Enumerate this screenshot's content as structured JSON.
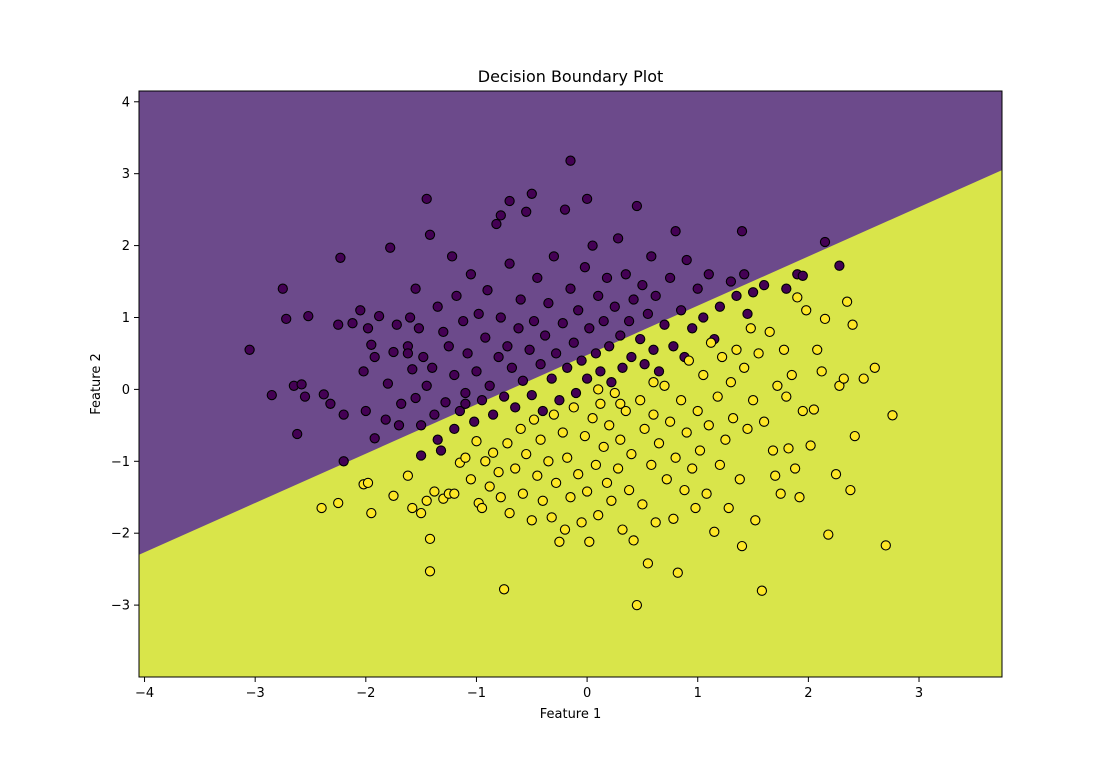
{
  "chart_data": {
    "type": "scatter",
    "title": "Decision Boundary Plot",
    "xlabel": "Feature 1",
    "ylabel": "Feature 2",
    "xlim": [
      -4.05,
      3.75
    ],
    "ylim": [
      -4.0,
      4.15
    ],
    "x_ticks": [
      -4,
      -3,
      -2,
      -1,
      0,
      1,
      2,
      3
    ],
    "y_ticks": [
      -3,
      -2,
      -1,
      0,
      1,
      2,
      3,
      4
    ],
    "grid": false,
    "decision_boundary": {
      "line": [
        [
          -4.05,
          -2.3
        ],
        [
          3.75,
          3.05
        ]
      ],
      "region_above_color": "#6c4a8b",
      "region_below_color": "#d9e54a"
    },
    "series": [
      {
        "class": 0,
        "color": "#440154",
        "points": [
          [
            -3.05,
            0.55
          ],
          [
            -2.85,
            -0.08
          ],
          [
            -2.75,
            1.4
          ],
          [
            -2.72,
            0.98
          ],
          [
            -2.65,
            0.05
          ],
          [
            -2.62,
            -0.62
          ],
          [
            -2.58,
            0.07
          ],
          [
            -2.55,
            -0.1
          ],
          [
            -2.52,
            1.02
          ],
          [
            -2.38,
            -0.07
          ],
          [
            -2.32,
            -0.2
          ],
          [
            -2.25,
            0.9
          ],
          [
            -2.23,
            1.83
          ],
          [
            -2.2,
            -0.35
          ],
          [
            -2.2,
            -1.0
          ],
          [
            -2.12,
            0.92
          ],
          [
            -2.05,
            1.1
          ],
          [
            -2.02,
            0.25
          ],
          [
            -2.0,
            -0.3
          ],
          [
            -1.98,
            0.85
          ],
          [
            -1.95,
            0.62
          ],
          [
            -1.92,
            0.45
          ],
          [
            -1.92,
            -0.68
          ],
          [
            -1.88,
            1.02
          ],
          [
            -1.8,
            0.08
          ],
          [
            -1.82,
            -0.42
          ],
          [
            -1.78,
            1.97
          ],
          [
            -1.75,
            0.52
          ],
          [
            -1.72,
            0.9
          ],
          [
            -1.7,
            -0.5
          ],
          [
            -1.68,
            -0.2
          ],
          [
            -1.62,
            0.6
          ],
          [
            -1.6,
            1.0
          ],
          [
            -1.58,
            0.28
          ],
          [
            -1.55,
            -0.12
          ],
          [
            -1.55,
            1.4
          ],
          [
            -1.52,
            0.85
          ],
          [
            -1.5,
            -0.5
          ],
          [
            -1.48,
            0.45
          ],
          [
            -1.45,
            0.05
          ],
          [
            -1.42,
            2.15
          ],
          [
            -1.4,
            0.3
          ],
          [
            -1.38,
            -0.35
          ],
          [
            -1.35,
            1.15
          ],
          [
            -1.32,
            -0.85
          ],
          [
            -1.3,
            0.8
          ],
          [
            -1.28,
            -0.18
          ],
          [
            -1.25,
            0.6
          ],
          [
            -1.22,
            1.85
          ],
          [
            -1.2,
            -0.55
          ],
          [
            -1.2,
            0.2
          ],
          [
            -1.18,
            1.3
          ],
          [
            -1.15,
            -0.3
          ],
          [
            -1.12,
            0.95
          ],
          [
            -1.1,
            -0.05
          ],
          [
            -1.08,
            0.5
          ],
          [
            -1.05,
            1.6
          ],
          [
            -1.02,
            -0.45
          ],
          [
            -1.0,
            0.25
          ],
          [
            -0.98,
            1.05
          ],
          [
            -0.95,
            -0.15
          ],
          [
            -0.92,
            0.72
          ],
          [
            -0.9,
            1.38
          ],
          [
            -0.88,
            0.05
          ],
          [
            -0.85,
            -0.35
          ],
          [
            -0.82,
            2.3
          ],
          [
            -0.8,
            0.45
          ],
          [
            -0.78,
            1.0
          ],
          [
            -0.75,
            -0.1
          ],
          [
            -0.72,
            0.6
          ],
          [
            -0.7,
            1.75
          ],
          [
            -0.68,
            0.3
          ],
          [
            -0.65,
            -0.25
          ],
          [
            -0.62,
            0.85
          ],
          [
            -0.6,
            1.25
          ],
          [
            -0.58,
            0.12
          ],
          [
            -0.55,
            2.47
          ],
          [
            -0.52,
            0.55
          ],
          [
            -0.5,
            -0.08
          ],
          [
            -0.48,
            0.95
          ],
          [
            -0.45,
            1.55
          ],
          [
            -0.42,
            0.35
          ],
          [
            -0.4,
            -0.3
          ],
          [
            -0.38,
            0.75
          ],
          [
            -0.35,
            1.2
          ],
          [
            -0.32,
            0.15
          ],
          [
            -0.3,
            1.85
          ],
          [
            -0.28,
            0.5
          ],
          [
            -0.25,
            -0.15
          ],
          [
            -0.22,
            0.92
          ],
          [
            -0.2,
            2.5
          ],
          [
            -0.18,
            0.3
          ],
          [
            -0.15,
            1.4
          ],
          [
            -0.12,
            0.65
          ],
          [
            -0.1,
            -0.05
          ],
          [
            -0.08,
            1.1
          ],
          [
            -0.05,
            0.4
          ],
          [
            -0.02,
            1.7
          ],
          [
            0.0,
            0.15
          ],
          [
            0.02,
            0.85
          ],
          [
            0.05,
            2.0
          ],
          [
            0.08,
            0.5
          ],
          [
            0.1,
            1.3
          ],
          [
            0.12,
            0.25
          ],
          [
            0.15,
            0.95
          ],
          [
            0.18,
            1.55
          ],
          [
            0.2,
            0.6
          ],
          [
            0.22,
            0.1
          ],
          [
            0.25,
            1.15
          ],
          [
            0.28,
            2.1
          ],
          [
            0.3,
            0.75
          ],
          [
            0.32,
            0.3
          ],
          [
            0.35,
            1.6
          ],
          [
            0.38,
            0.95
          ],
          [
            0.4,
            0.45
          ],
          [
            0.42,
            1.25
          ],
          [
            0.45,
            2.55
          ],
          [
            0.48,
            0.7
          ],
          [
            0.5,
            1.45
          ],
          [
            0.52,
            0.35
          ],
          [
            0.55,
            1.05
          ],
          [
            0.58,
            1.85
          ],
          [
            0.6,
            0.55
          ],
          [
            0.62,
            1.3
          ],
          [
            0.65,
            0.25
          ],
          [
            0.7,
            0.9
          ],
          [
            0.75,
            1.55
          ],
          [
            0.78,
            0.6
          ],
          [
            0.8,
            2.2
          ],
          [
            0.85,
            1.1
          ],
          [
            0.88,
            0.45
          ],
          [
            0.9,
            1.8
          ],
          [
            0.95,
            0.85
          ],
          [
            1.0,
            1.4
          ],
          [
            1.05,
            1.0
          ],
          [
            1.1,
            1.6
          ],
          [
            1.15,
            0.7
          ],
          [
            1.2,
            1.15
          ],
          [
            1.3,
            1.5
          ],
          [
            1.35,
            1.3
          ],
          [
            1.4,
            2.2
          ],
          [
            1.42,
            1.6
          ],
          [
            1.45,
            1.05
          ],
          [
            1.5,
            1.35
          ],
          [
            1.6,
            1.45
          ],
          [
            1.8,
            1.4
          ],
          [
            1.9,
            1.6
          ],
          [
            1.95,
            1.58
          ],
          [
            2.15,
            2.05
          ],
          [
            2.28,
            1.72
          ],
          [
            -1.45,
            2.65
          ],
          [
            -0.7,
            2.62
          ],
          [
            0.0,
            2.65
          ],
          [
            -0.5,
            2.72
          ],
          [
            -0.15,
            3.18
          ],
          [
            -0.78,
            2.42
          ],
          [
            -1.62,
            0.5
          ],
          [
            -1.5,
            -0.92
          ],
          [
            -1.35,
            -0.7
          ],
          [
            -1.1,
            -0.2
          ]
        ]
      },
      {
        "class": 1,
        "color": "#fde725",
        "points": [
          [
            -2.4,
            -1.65
          ],
          [
            -2.25,
            -1.58
          ],
          [
            -2.02,
            -1.32
          ],
          [
            -1.98,
            -1.3
          ],
          [
            -1.95,
            -1.72
          ],
          [
            -1.75,
            -1.48
          ],
          [
            -1.62,
            -1.2
          ],
          [
            -1.58,
            -1.65
          ],
          [
            -1.5,
            -1.72
          ],
          [
            -1.45,
            -1.55
          ],
          [
            -1.42,
            -2.08
          ],
          [
            -1.42,
            -2.53
          ],
          [
            -1.38,
            -1.42
          ],
          [
            -1.3,
            -1.52
          ],
          [
            -1.25,
            -1.45
          ],
          [
            -1.2,
            -1.45
          ],
          [
            -1.15,
            -1.02
          ],
          [
            -1.1,
            -0.95
          ],
          [
            -1.05,
            -1.25
          ],
          [
            -1.0,
            -0.72
          ],
          [
            -0.98,
            -1.58
          ],
          [
            -0.95,
            -1.65
          ],
          [
            -0.92,
            -1.0
          ],
          [
            -0.88,
            -1.35
          ],
          [
            -0.85,
            -0.88
          ],
          [
            -0.8,
            -1.15
          ],
          [
            -0.78,
            -1.5
          ],
          [
            -0.75,
            -2.78
          ],
          [
            -0.72,
            -0.75
          ],
          [
            -0.7,
            -1.72
          ],
          [
            -0.65,
            -1.1
          ],
          [
            -0.6,
            -0.55
          ],
          [
            -0.58,
            -1.45
          ],
          [
            -0.55,
            -0.9
          ],
          [
            -0.5,
            -1.82
          ],
          [
            -0.48,
            -0.42
          ],
          [
            -0.45,
            -1.2
          ],
          [
            -0.42,
            -0.7
          ],
          [
            -0.4,
            -1.55
          ],
          [
            -0.35,
            -1.0
          ],
          [
            -0.32,
            -1.78
          ],
          [
            -0.3,
            -0.35
          ],
          [
            -0.28,
            -1.3
          ],
          [
            -0.25,
            -2.12
          ],
          [
            -0.22,
            -0.6
          ],
          [
            -0.2,
            -1.95
          ],
          [
            -0.18,
            -0.95
          ],
          [
            -0.15,
            -1.5
          ],
          [
            -0.12,
            -0.25
          ],
          [
            -0.08,
            -1.18
          ],
          [
            -0.05,
            -1.85
          ],
          [
            -0.02,
            -0.65
          ],
          [
            0.0,
            -1.42
          ],
          [
            0.02,
            -2.12
          ],
          [
            0.05,
            -0.4
          ],
          [
            0.08,
            -1.05
          ],
          [
            0.1,
            -1.75
          ],
          [
            0.12,
            -0.2
          ],
          [
            0.15,
            -0.8
          ],
          [
            0.18,
            -1.3
          ],
          [
            0.2,
            -0.5
          ],
          [
            0.22,
            -1.55
          ],
          [
            0.25,
            -0.05
          ],
          [
            0.28,
            -1.1
          ],
          [
            0.3,
            -0.7
          ],
          [
            0.32,
            -1.95
          ],
          [
            0.35,
            -0.3
          ],
          [
            0.38,
            -1.4
          ],
          [
            0.4,
            -0.9
          ],
          [
            0.42,
            -2.1
          ],
          [
            0.45,
            -3.0
          ],
          [
            0.48,
            -0.15
          ],
          [
            0.5,
            -1.6
          ],
          [
            0.52,
            -0.55
          ],
          [
            0.55,
            -2.42
          ],
          [
            0.58,
            -1.05
          ],
          [
            0.6,
            -0.35
          ],
          [
            0.62,
            -1.85
          ],
          [
            0.65,
            -0.75
          ],
          [
            0.7,
            0.05
          ],
          [
            0.72,
            -1.25
          ],
          [
            0.75,
            -0.45
          ],
          [
            0.78,
            -1.8
          ],
          [
            0.8,
            -0.95
          ],
          [
            0.82,
            -2.55
          ],
          [
            0.85,
            -0.15
          ],
          [
            0.88,
            -1.4
          ],
          [
            0.9,
            -0.6
          ],
          [
            0.92,
            0.4
          ],
          [
            0.95,
            -1.1
          ],
          [
            0.98,
            -1.65
          ],
          [
            1.0,
            -0.3
          ],
          [
            1.02,
            -0.85
          ],
          [
            1.05,
            0.2
          ],
          [
            1.08,
            -1.45
          ],
          [
            1.1,
            -0.5
          ],
          [
            1.12,
            0.65
          ],
          [
            1.15,
            -1.98
          ],
          [
            1.18,
            -0.1
          ],
          [
            1.2,
            -1.05
          ],
          [
            1.22,
            0.45
          ],
          [
            1.25,
            -0.7
          ],
          [
            1.28,
            -1.65
          ],
          [
            1.3,
            0.1
          ],
          [
            1.32,
            -0.4
          ],
          [
            1.35,
            0.55
          ],
          [
            1.38,
            -1.25
          ],
          [
            1.4,
            -2.18
          ],
          [
            1.42,
            0.3
          ],
          [
            1.45,
            -0.55
          ],
          [
            1.48,
            0.85
          ],
          [
            1.5,
            -0.15
          ],
          [
            1.52,
            -1.82
          ],
          [
            1.55,
            0.5
          ],
          [
            1.58,
            -2.8
          ],
          [
            1.6,
            -0.45
          ],
          [
            1.65,
            0.8
          ],
          [
            1.68,
            -0.85
          ],
          [
            1.7,
            -1.2
          ],
          [
            1.72,
            0.05
          ],
          [
            1.75,
            -1.45
          ],
          [
            1.78,
            0.55
          ],
          [
            1.8,
            -0.1
          ],
          [
            1.82,
            -0.82
          ],
          [
            1.85,
            0.2
          ],
          [
            1.88,
            -1.1
          ],
          [
            1.9,
            1.28
          ],
          [
            1.92,
            -1.5
          ],
          [
            1.95,
            -0.3
          ],
          [
            1.98,
            1.1
          ],
          [
            2.02,
            -0.78
          ],
          [
            2.05,
            -0.28
          ],
          [
            2.08,
            0.55
          ],
          [
            2.12,
            0.25
          ],
          [
            2.15,
            0.98
          ],
          [
            2.18,
            -2.02
          ],
          [
            2.25,
            -1.18
          ],
          [
            2.28,
            0.05
          ],
          [
            2.32,
            0.15
          ],
          [
            2.35,
            1.22
          ],
          [
            2.38,
            -1.4
          ],
          [
            2.4,
            0.9
          ],
          [
            2.42,
            -0.65
          ],
          [
            2.5,
            0.15
          ],
          [
            2.6,
            0.3
          ],
          [
            2.7,
            -2.17
          ],
          [
            2.76,
            -0.36
          ],
          [
            0.3,
            -0.2
          ],
          [
            0.6,
            0.1
          ],
          [
            0.1,
            0.0
          ]
        ]
      }
    ]
  }
}
